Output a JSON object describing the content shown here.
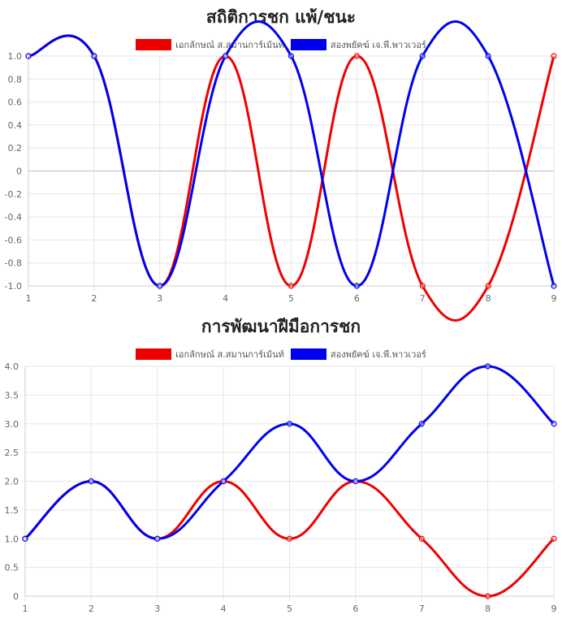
{
  "colors": {
    "red": "#ee0000",
    "blue": "#0000ee",
    "grid": "#e6e6e6",
    "zero": "#bdbdbd"
  },
  "chart_data": [
    {
      "type": "line",
      "title": "สถิติการชก แพ้/ชนะ",
      "categories": [
        "1",
        "2",
        "3",
        "4",
        "5",
        "6",
        "7",
        "8",
        "9"
      ],
      "ylim": [
        -1.0,
        1.0
      ],
      "yticks": [
        "1.0",
        "0.8",
        "0.6",
        "0.4",
        "0.2",
        "0",
        "-0.2",
        "-0.4",
        "-0.6",
        "-0.8",
        "-1.0"
      ],
      "grid": true,
      "legend_position": "top-center",
      "series": [
        {
          "name": "เอกลักษณ์ ส.สมานการ์เม้นท์",
          "color": "#ee0000",
          "values": [
            1,
            1,
            -1,
            1,
            -1,
            1,
            -1,
            -1,
            1
          ]
        },
        {
          "name": "สองพยัคฆ์ เจ.พี.พาวเวอร์",
          "color": "#0000ee",
          "values": [
            1,
            1,
            -1,
            1,
            1,
            -1,
            1,
            1,
            -1
          ]
        }
      ]
    },
    {
      "type": "line",
      "title": "การพัฒนาฝีมือการชก",
      "categories": [
        "1",
        "2",
        "3",
        "4",
        "5",
        "6",
        "7",
        "8",
        "9"
      ],
      "ylim": [
        0,
        4.0
      ],
      "yticks": [
        "4.0",
        "3.5",
        "3.0",
        "2.5",
        "2.0",
        "1.5",
        "1.0",
        "0.5",
        "0"
      ],
      "grid": true,
      "legend_position": "top-center",
      "series": [
        {
          "name": "เอกลักษณ์ ส.สมานการ์เม้นท์",
          "color": "#ee0000",
          "values": [
            1,
            2,
            1,
            2,
            1,
            2,
            1,
            0,
            1
          ]
        },
        {
          "name": "สองพยัคฆ์ เจ.พี.พาวเวอร์",
          "color": "#0000ee",
          "values": [
            1,
            2,
            1,
            2,
            3,
            2,
            3,
            4,
            3
          ]
        }
      ]
    }
  ]
}
